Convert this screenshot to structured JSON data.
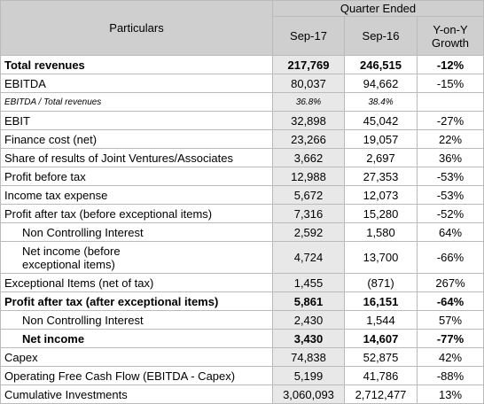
{
  "header": {
    "particulars": "Particulars",
    "quarter_ended": "Quarter Ended",
    "columns": [
      "Sep-17",
      "Sep-16",
      "Y-on-Y Growth"
    ]
  },
  "rows": [
    [
      "Total revenues",
      "217,769",
      "246,515",
      "-12%"
    ],
    [
      "EBITDA",
      "80,037",
      "94,662",
      "-15%"
    ],
    [
      "EBITDA / Total revenues",
      "36.8%",
      "38.4%",
      ""
    ],
    [
      "EBIT",
      "32,898",
      "45,042",
      "-27%"
    ],
    [
      "Finance cost (net)",
      "23,266",
      "19,057",
      "22%"
    ],
    [
      "Share of results of Joint Ventures/Associates",
      "3,662",
      "2,697",
      "36%"
    ],
    [
      "Profit before tax",
      "12,988",
      "27,353",
      "-53%"
    ],
    [
      "Income tax expense",
      "5,672",
      "12,073",
      "-53%"
    ],
    [
      "Profit after tax (before exceptional items)",
      "7,316",
      "15,280",
      "-52%"
    ],
    [
      "Non Controlling Interest",
      "2,592",
      "1,580",
      "64%"
    ],
    [
      "Net income (before exceptional items)",
      "4,724",
      "13,700",
      "-66%"
    ],
    [
      "Exceptional Items (net of tax)",
      "1,455",
      "(871)",
      "267%"
    ],
    [
      "Profit after tax (after exceptional items)",
      "5,861",
      "16,151",
      "-64%"
    ],
    [
      "Non Controlling Interest",
      "2,430",
      "1,544",
      "57%"
    ],
    [
      "Net income",
      "3,430",
      "14,607",
      "-77%"
    ],
    [
      "Capex",
      "74,838",
      "52,875",
      "42%"
    ],
    [
      "Operating Free Cash Flow (EBITDA - Capex)",
      "5,199",
      "41,786",
      "-88%"
    ],
    [
      "Cumulative Investments",
      "3,060,093",
      "2,712,477",
      "13%"
    ]
  ]
}
